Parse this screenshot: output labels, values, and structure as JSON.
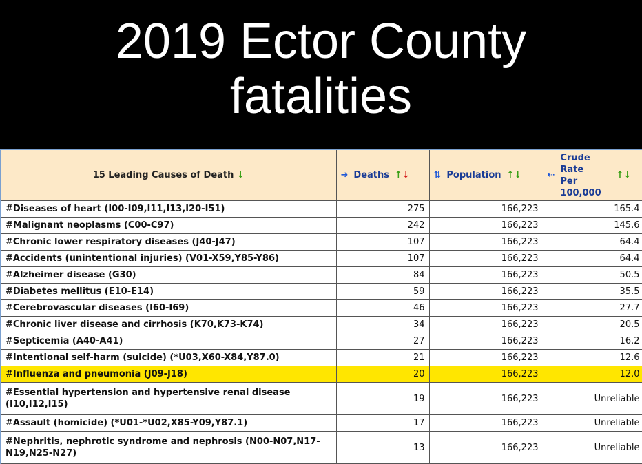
{
  "title_line1": "2019 Ector County",
  "title_line2": "fatalities",
  "table": {
    "headers": {
      "cause": "15 Leading Causes of Death",
      "deaths": "Deaths",
      "population": "Population",
      "rate_lines": [
        "Crude",
        "Rate",
        "Per",
        "100,000"
      ]
    },
    "highlight_color": "#ffe600",
    "rows": [
      {
        "cause": "#Diseases of heart (I00-I09,I11,I13,I20-I51)",
        "deaths": "275",
        "population": "166,223",
        "rate": "165.4"
      },
      {
        "cause": "#Malignant neoplasms (C00-C97)",
        "deaths": "242",
        "population": "166,223",
        "rate": "145.6"
      },
      {
        "cause": "#Chronic lower respiratory diseases (J40-J47)",
        "deaths": "107",
        "population": "166,223",
        "rate": "64.4"
      },
      {
        "cause": "#Accidents (unintentional injuries) (V01-X59,Y85-Y86)",
        "deaths": "107",
        "population": "166,223",
        "rate": "64.4"
      },
      {
        "cause": "#Alzheimer disease (G30)",
        "deaths": "84",
        "population": "166,223",
        "rate": "50.5"
      },
      {
        "cause": "#Diabetes mellitus (E10-E14)",
        "deaths": "59",
        "population": "166,223",
        "rate": "35.5"
      },
      {
        "cause": "#Cerebrovascular diseases (I60-I69)",
        "deaths": "46",
        "population": "166,223",
        "rate": "27.7"
      },
      {
        "cause": "#Chronic liver disease and cirrhosis (K70,K73-K74)",
        "deaths": "34",
        "population": "166,223",
        "rate": "20.5"
      },
      {
        "cause": "#Septicemia (A40-A41)",
        "deaths": "27",
        "population": "166,223",
        "rate": "16.2"
      },
      {
        "cause": "#Intentional self-harm (suicide) (*U03,X60-X84,Y87.0)",
        "deaths": "21",
        "population": "166,223",
        "rate": "12.6"
      },
      {
        "cause": "#Influenza and pneumonia (J09-J18)",
        "deaths": "20",
        "population": "166,223",
        "rate": "12.0",
        "highlighted": true
      },
      {
        "cause": "#Essential hypertension and hypertensive renal disease (I10,I12,I15)",
        "deaths": "19",
        "population": "166,223",
        "rate": "Unreliable",
        "tall": true
      },
      {
        "cause": "#Assault (homicide) (*U01-*U02,X85-Y09,Y87.1)",
        "deaths": "17",
        "population": "166,223",
        "rate": "Unreliable"
      },
      {
        "cause": "#Nephritis, nephrotic syndrome and nephrosis (N00-N07,N17-N19,N25-N27)",
        "deaths": "13",
        "population": "166,223",
        "rate": "Unreliable",
        "tall": true
      }
    ]
  }
}
